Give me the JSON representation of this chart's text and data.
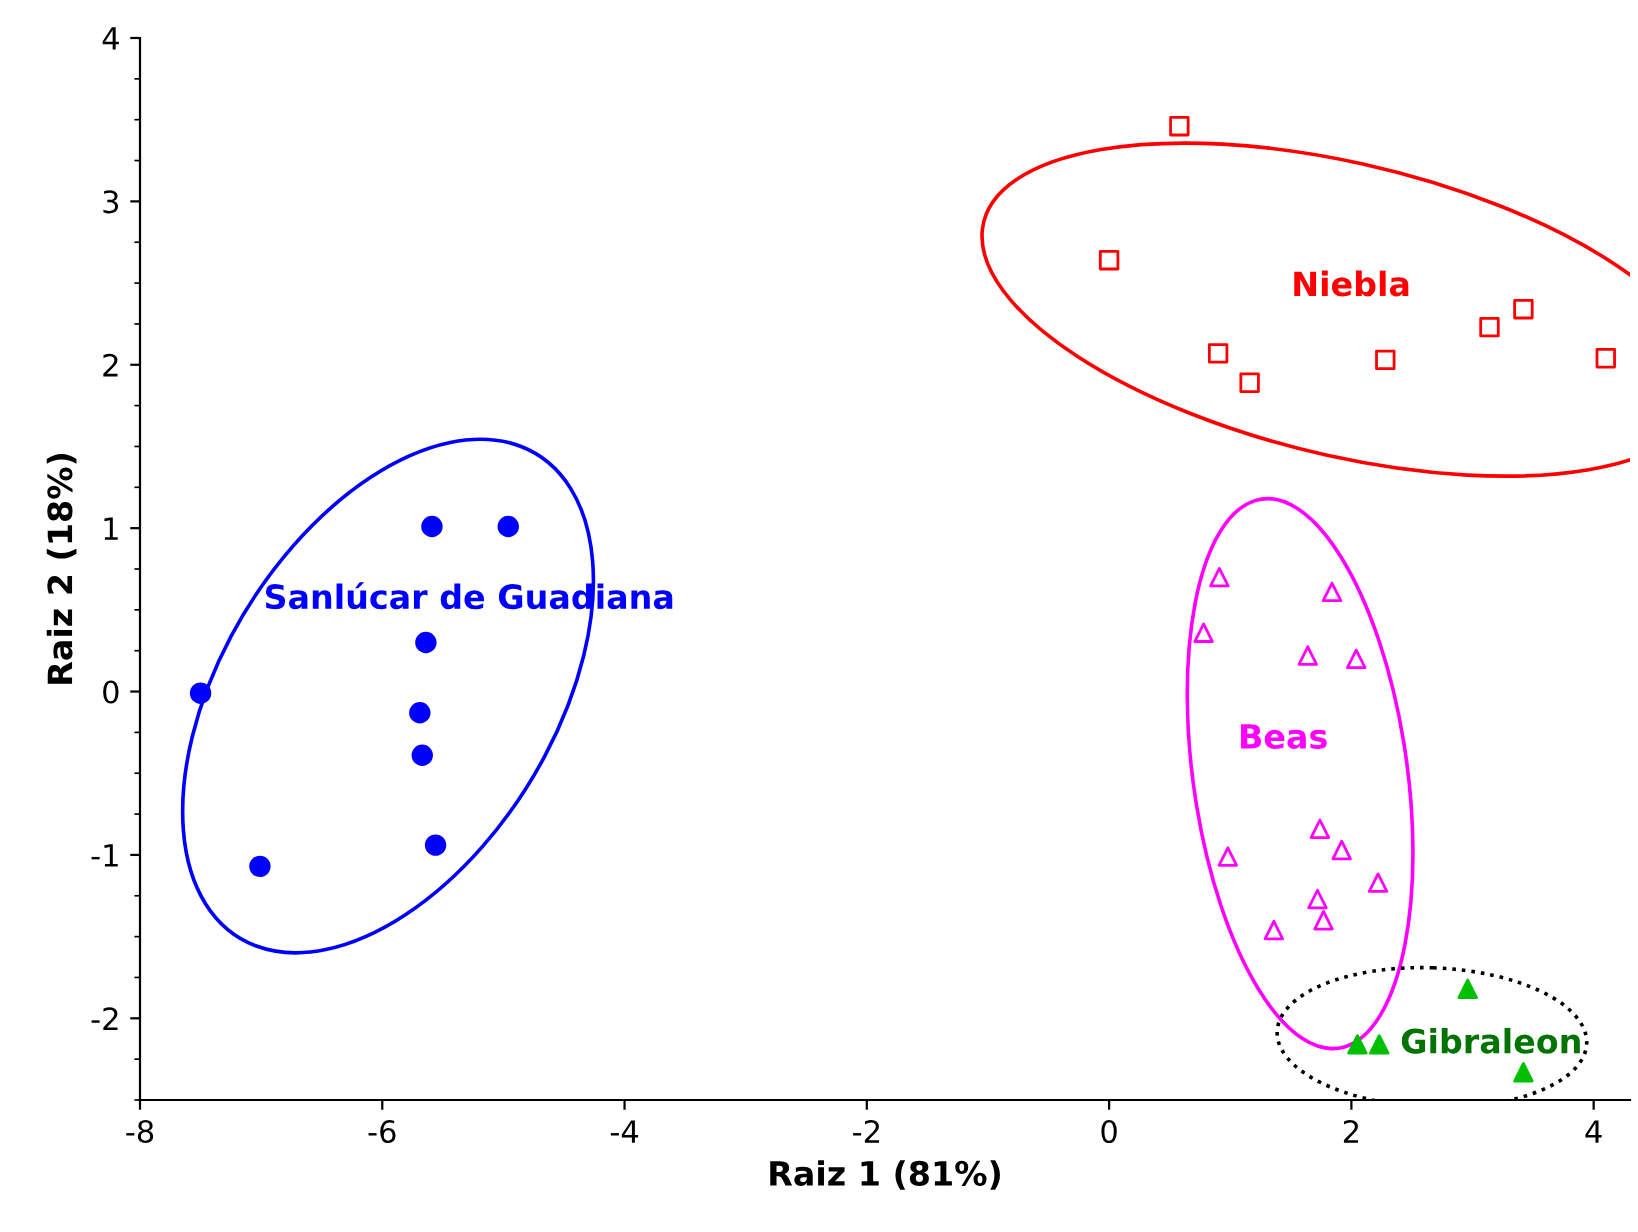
{
  "chart_data": {
    "type": "scatter",
    "xlabel": "Raiz 1 (81%)",
    "ylabel": "Raiz 2 (18%)",
    "xlim": [
      -8,
      4.3
    ],
    "ylim": [
      -2.5,
      4
    ],
    "xticks": [
      -8,
      -6,
      -4,
      -2,
      0,
      2,
      4
    ],
    "yticks": [
      -2,
      -1,
      0,
      1,
      2,
      3,
      4
    ],
    "grid": false,
    "legend": false,
    "series": [
      {
        "name": "Niebla",
        "marker": "square",
        "color": "#ff0000",
        "x": [
          0.58,
          0.0,
          0.9,
          1.16,
          2.28,
          3.14,
          3.42,
          4.1
        ],
        "values": [
          3.46,
          2.64,
          2.07,
          1.89,
          2.03,
          2.23,
          2.34,
          2.04
        ]
      },
      {
        "name": "Beas",
        "marker": "triangle",
        "color": "#ff00ff",
        "x": [
          0.91,
          0.78,
          1.84,
          1.64,
          2.04,
          1.74,
          1.92,
          0.98,
          2.22,
          1.72,
          1.77,
          1.36
        ],
        "values": [
          0.7,
          0.36,
          0.61,
          0.22,
          0.2,
          -0.84,
          -0.97,
          -1.01,
          -1.17,
          -1.27,
          -1.4,
          -1.46
        ]
      },
      {
        "name": "Sanlúcar de Guadiana",
        "marker": "circle",
        "color": "#0000ff",
        "x": [
          -7.5,
          -7.01,
          -5.59,
          -4.96,
          -5.64,
          -5.69,
          -5.67,
          -5.56
        ],
        "values": [
          -0.01,
          -1.07,
          1.01,
          1.01,
          0.3,
          -0.13,
          -0.39,
          -0.94
        ]
      },
      {
        "name": "Gibraleon",
        "marker": "triangle",
        "color": "#00c000",
        "x": [
          2.96,
          2.05,
          2.23,
          3.42
        ],
        "values": [
          -1.82,
          -2.16,
          -2.16,
          -2.33
        ]
      }
    ]
  }
}
